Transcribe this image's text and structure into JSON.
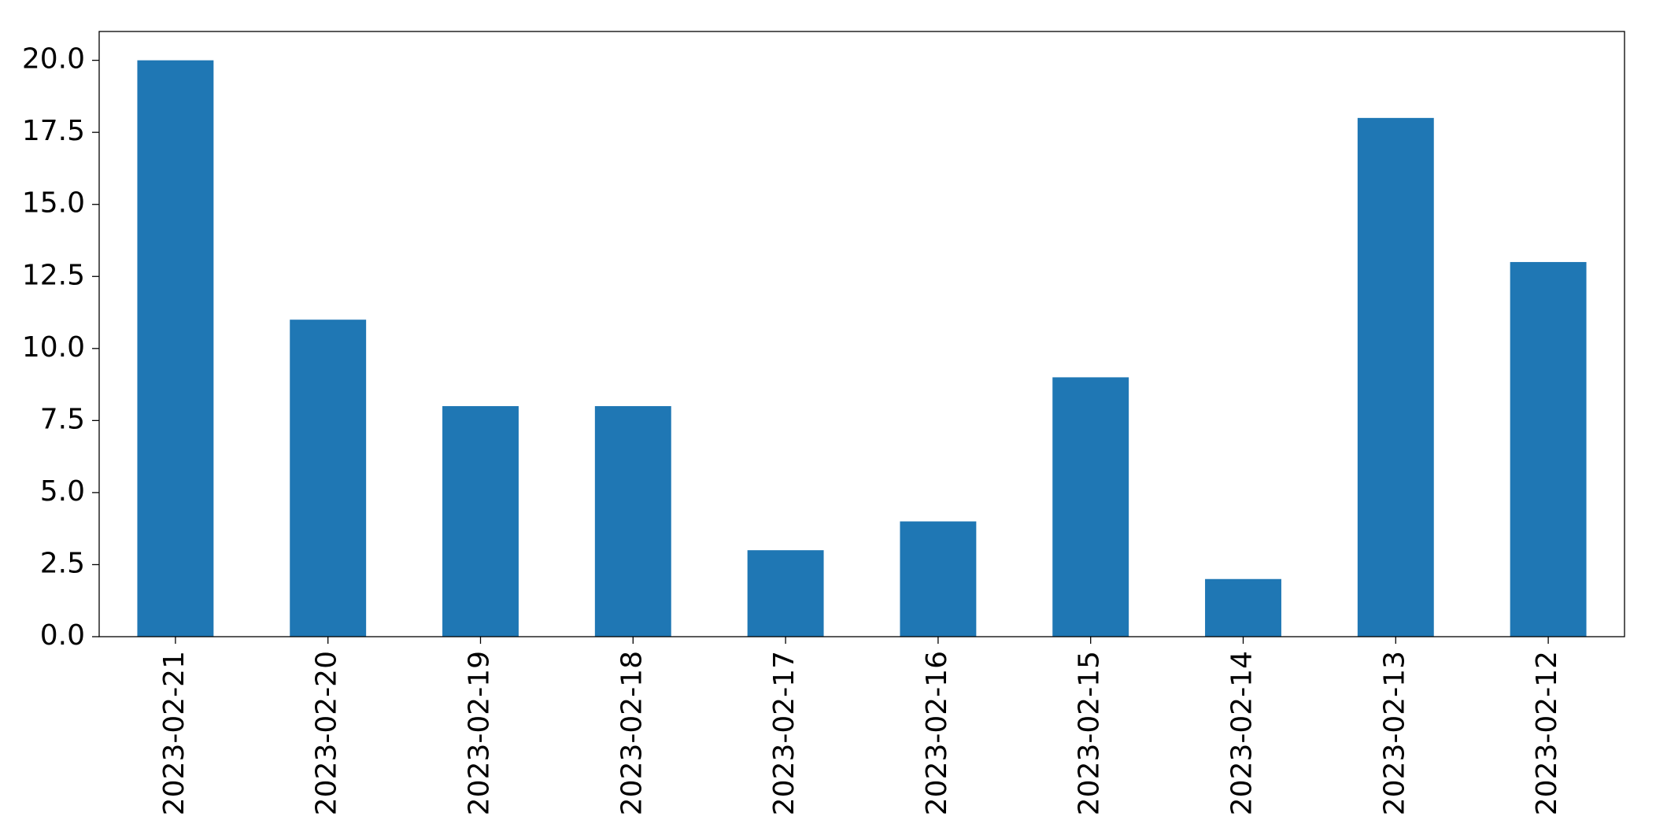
{
  "chart_data": {
    "type": "bar",
    "categories": [
      "2023-02-21",
      "2023-02-20",
      "2023-02-19",
      "2023-02-18",
      "2023-02-17",
      "2023-02-16",
      "2023-02-15",
      "2023-02-14",
      "2023-02-13",
      "2023-02-12"
    ],
    "values": [
      20,
      11,
      8,
      8,
      3,
      4,
      9,
      2,
      18,
      13
    ],
    "color": "#1f77b4",
    "ylim": [
      0,
      21
    ],
    "yticks": [
      {
        "value": 0,
        "label": "0.0"
      },
      2.5,
      {
        "value": 5,
        "label": "5.0"
      },
      7.5,
      {
        "value": 10,
        "label": "10.0"
      },
      12.5,
      {
        "value": 15,
        "label": "15.0"
      },
      17.5,
      {
        "value": 20,
        "label": "20.0"
      }
    ],
    "grid": false
  }
}
